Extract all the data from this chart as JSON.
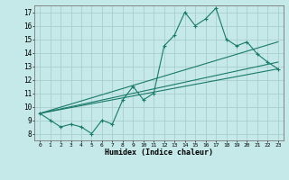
{
  "title": "",
  "xlabel": "Humidex (Indice chaleur)",
  "background_color": "#c5e8e8",
  "grid_color": "#aacece",
  "line_color": "#1a7a6a",
  "xlim": [
    -0.5,
    23.5
  ],
  "ylim": [
    7.5,
    17.5
  ],
  "xticks": [
    0,
    1,
    2,
    3,
    4,
    5,
    6,
    7,
    8,
    9,
    10,
    11,
    12,
    13,
    14,
    15,
    16,
    17,
    18,
    19,
    20,
    21,
    22,
    23
  ],
  "yticks": [
    8,
    9,
    10,
    11,
    12,
    13,
    14,
    15,
    16,
    17
  ],
  "main_series": [
    9.5,
    9.0,
    8.5,
    8.7,
    8.5,
    8.0,
    9.0,
    8.7,
    10.5,
    11.5,
    10.5,
    11.0,
    14.5,
    15.3,
    17.0,
    16.0,
    16.5,
    17.3,
    15.0,
    14.5,
    14.8,
    13.9,
    13.3,
    12.8
  ],
  "trend_lines": [
    {
      "x0": 0,
      "y0": 9.5,
      "x1": 23,
      "y1": 12.8
    },
    {
      "x0": 0,
      "y0": 9.5,
      "x1": 23,
      "y1": 14.8
    },
    {
      "x0": 0,
      "y0": 9.5,
      "x1": 23,
      "y1": 13.3
    }
  ]
}
